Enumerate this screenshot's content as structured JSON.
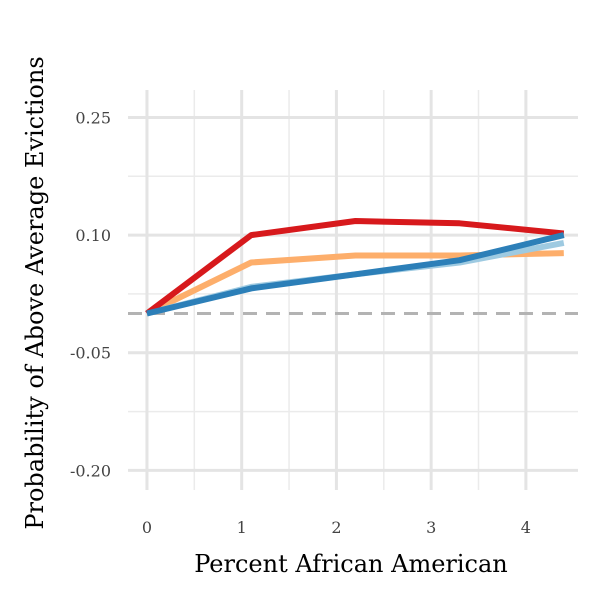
{
  "chart_data": {
    "type": "line",
    "title": "",
    "xlabel": "Percent African American",
    "ylabel": "Probability of Above Average Evictions",
    "xlim": [
      -0.2,
      4.55
    ],
    "ylim": [
      -0.225,
      0.285
    ],
    "x_ticks": [
      0,
      1,
      2,
      3,
      4
    ],
    "x_tick_labels": [
      "0",
      "1",
      "2",
      "3",
      "4"
    ],
    "y_ticks": [
      -0.2,
      -0.05,
      0.1,
      0.25
    ],
    "y_tick_labels": [
      "-0.20",
      "-0.05",
      "0.10",
      "0.25"
    ],
    "grid": true,
    "legend": "none",
    "reference_line": {
      "y": 0.0,
      "style": "dashed",
      "color": "#b3b3b3"
    },
    "series": [
      {
        "color": "#fdae6b",
        "x": [
          0,
          1.1,
          2.2,
          3.3,
          4.4
        ],
        "y": [
          0.0,
          0.065,
          0.074,
          0.074,
          0.077
        ]
      },
      {
        "color": "#9ecae1",
        "x": [
          0,
          1.1,
          2.2,
          3.3,
          4.4
        ],
        "y": [
          0.0,
          0.034,
          0.05,
          0.065,
          0.09
        ]
      },
      {
        "color": "#d7191c",
        "x": [
          0,
          1.1,
          2.2,
          3.3,
          4.4
        ],
        "y": [
          0.0,
          0.1,
          0.118,
          0.115,
          0.102
        ]
      },
      {
        "color": "#2c7fb8",
        "x": [
          0,
          1.1,
          2.2,
          3.3,
          4.4
        ],
        "y": [
          0.0,
          0.032,
          0.05,
          0.068,
          0.1
        ]
      }
    ]
  }
}
